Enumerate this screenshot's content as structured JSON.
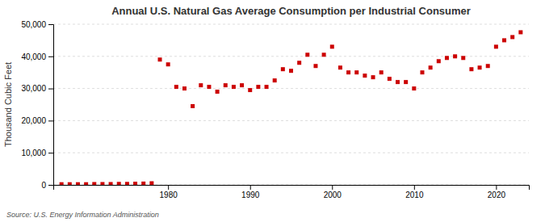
{
  "chart_data": {
    "type": "scatter",
    "title": "Annual U.S. Natural Gas Average Consumption per Industrial Consumer",
    "ylabel": "Thousand Cubic Feet",
    "source": "Source: U.S. Energy Information Administration",
    "x": [
      1967,
      1968,
      1969,
      1970,
      1971,
      1972,
      1973,
      1974,
      1975,
      1976,
      1977,
      1978,
      1979,
      1980,
      1981,
      1982,
      1983,
      1984,
      1985,
      1986,
      1987,
      1988,
      1989,
      1990,
      1991,
      1992,
      1993,
      1994,
      1995,
      1996,
      1997,
      1998,
      1999,
      2000,
      2001,
      2002,
      2003,
      2004,
      2005,
      2006,
      2007,
      2008,
      2009,
      2010,
      2011,
      2012,
      2013,
      2014,
      2015,
      2016,
      2017,
      2018,
      2019,
      2020,
      2021,
      2022,
      2023
    ],
    "values": [
      200,
      200,
      200,
      200,
      250,
      250,
      250,
      300,
      300,
      350,
      400,
      500,
      39000,
      37500,
      30500,
      30000,
      24500,
      31000,
      30500,
      29000,
      31000,
      30500,
      31000,
      29500,
      30500,
      30500,
      32500,
      36000,
      35500,
      38000,
      40500,
      37000,
      40500,
      43000,
      36500,
      35000,
      35000,
      34000,
      33500,
      35000,
      33000,
      32000,
      32000,
      30000,
      35000,
      36500,
      38500,
      39500,
      40000,
      39500,
      36000,
      36500,
      37000,
      43000,
      45000,
      46000,
      47500
    ],
    "color": "#cc0000",
    "marker": "square",
    "xlim": [
      1966,
      2024
    ],
    "xticks": [
      1980,
      1990,
      2000,
      2010,
      2020
    ],
    "ylim": [
      0,
      50000
    ],
    "yticks": [
      0,
      {
        "value": 10000,
        "label": "10,000"
      },
      {
        "value": 20000,
        "label": "20,000"
      },
      {
        "value": 30000,
        "label": "30,000"
      },
      {
        "value": 40000,
        "label": "40,000"
      },
      {
        "value": 50000,
        "label": "50,000"
      }
    ],
    "grid": true
  }
}
